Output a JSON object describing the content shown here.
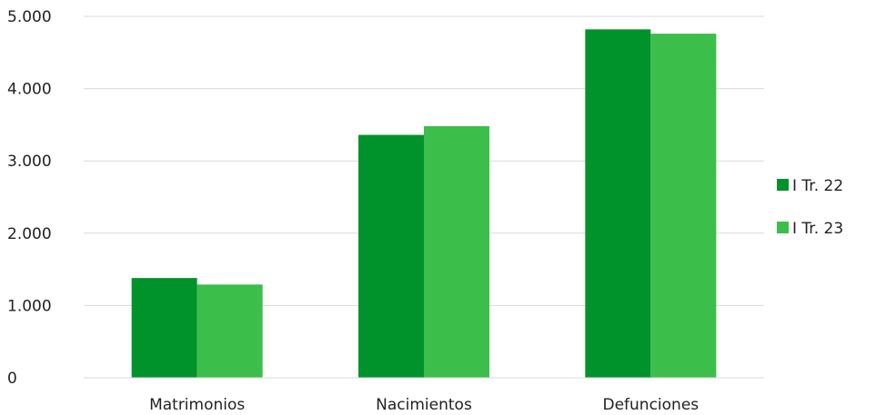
{
  "chart_data": {
    "type": "bar",
    "categories": [
      "Matrimonios",
      "Nacimientos",
      "Defunciones"
    ],
    "series": [
      {
        "name": "I Tr. 22",
        "values": [
          1380,
          3360,
          4820
        ],
        "color": "#00922B"
      },
      {
        "name": "I Tr. 23",
        "values": [
          1290,
          3480,
          4760
        ],
        "color": "#3BBE4A"
      }
    ],
    "ylim": [
      0,
      5000
    ],
    "yticks": [
      0,
      1000,
      2000,
      3000,
      4000,
      5000
    ],
    "ytick_labels": [
      "0",
      "1.000",
      "2.000",
      "3.000",
      "4.000",
      "5.000"
    ],
    "title": "",
    "xlabel": "",
    "ylabel": "",
    "grid": true,
    "gridline_color": "#D9D9D9",
    "legend_position": "right"
  }
}
